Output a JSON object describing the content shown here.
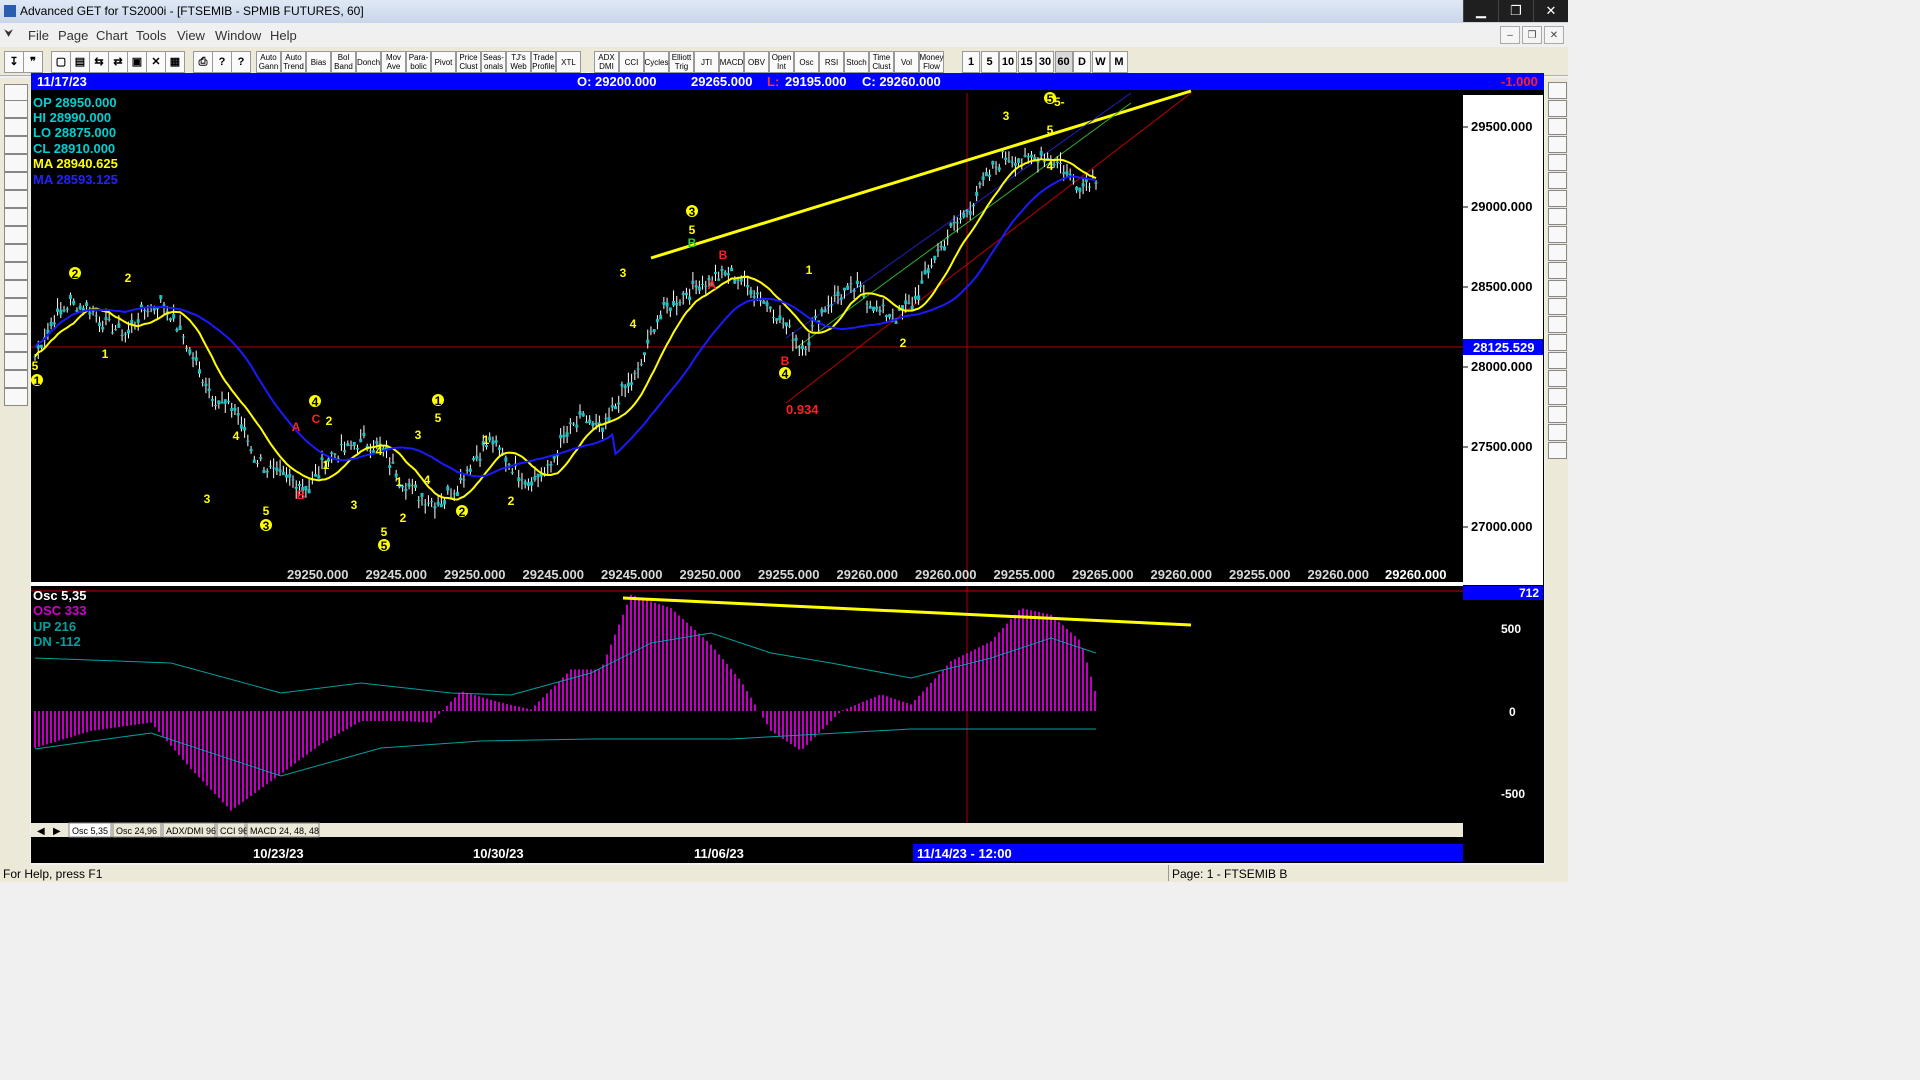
{
  "window": {
    "title": "Advanced GET for TS2000i - [FTSEMIB - SPMIB FUTURES, 60]",
    "minimize": "▁",
    "maximize": "❐",
    "close": "✕"
  },
  "menu": [
    "File",
    "Page",
    "Chart",
    "Tools",
    "View",
    "Window",
    "Help"
  ],
  "toolbar": {
    "study_buttons": [
      "Auto Gann",
      "Auto Trend",
      "Bias",
      "Bol Band",
      "Donch",
      "Mov Ave",
      "Para- bolic",
      "Pivot",
      "Price Clust",
      "Seas- onals",
      "TJ's Web",
      "Trade Profile",
      "XTL",
      "ADX DMI",
      "CCI",
      "Cycles",
      "Elliott Trig",
      "JTI",
      "MACD",
      "OBV",
      "Open Int",
      "Osc",
      "RSI",
      "Stoch",
      "Time Clust",
      "Vol",
      "Money Flow"
    ],
    "intervals": [
      "1",
      "5",
      "10",
      "15",
      "30",
      "60",
      "D",
      "W",
      "M"
    ],
    "active_interval": "60"
  },
  "header": {
    "date": "11/17/23",
    "open": "O: 29200.000",
    "high": "29265.000",
    "low_label": "L:",
    "low": "29195.000",
    "close": "C: 29260.000",
    "change": "-1.000"
  },
  "data_window": {
    "op": "OP  28950.000",
    "hi": "HI   28990.000",
    "lo": "LO  28875.000",
    "cl": "CL  28910.000",
    "ma1": "MA  28940.625",
    "ma2": "MA  28593.125"
  },
  "price_axis": {
    "ticks": [
      "29500.000",
      "29000.000",
      "28500.000",
      "28000.000",
      "27500.000",
      "27000.000"
    ],
    "cursor_price": "28125.529"
  },
  "bottom_value_row": [
    "29250.000",
    "29245.000",
    "29250.000",
    "29245.000",
    "29245.000",
    "29250.000",
    "29255.000",
    "29260.000",
    "29260.000",
    "29255.000",
    "29265.000",
    "29260.000",
    "29255.000",
    "29260.000"
  ],
  "bottom_value_last": "29260.000",
  "annotations": {
    "ratio": "0.934",
    "wave5_end": "5-"
  },
  "oscillator": {
    "title": "Osc 5,35",
    "osc": "OSC 333",
    "up": "UP   216",
    "dn": "DN   -112",
    "axis_ticks": [
      "500",
      "0",
      "-500"
    ],
    "axis_top": "712"
  },
  "tabs": [
    "Osc 5,35",
    "Osc 24,96",
    "ADX/DMI 96",
    "CCI 96",
    "MACD 24, 48, 48"
  ],
  "time_axis": {
    "labels": [
      "10/23/23",
      "10/30/23",
      "11/06/23"
    ],
    "cursor_time": "11/14/23 - 12:00"
  },
  "status": {
    "help": "For Help, press F1",
    "page": "Page: 1 - FTSEMIB B"
  },
  "colors": {
    "background": "#000000",
    "header_bar": "#0000ff",
    "ma_fast": "#ffff00",
    "ma_slow": "#1a1aff",
    "osc": "#c000c0",
    "signal": "#00a0a0",
    "cursor": "#c00000"
  },
  "chart_data": {
    "type": "candlestick",
    "price_range": [
      26700,
      29800
    ],
    "bars_approx_close": [
      28100,
      28350,
      28450,
      28400,
      28300,
      28250,
      28400,
      28450,
      28250,
      28000,
      27800,
      27750,
      27450,
      27350,
      27300,
      27250,
      27450,
      27500,
      27550,
      27500,
      27300,
      27200,
      27150,
      27250,
      27450,
      27550,
      27400,
      27300,
      27350,
      27600,
      27700,
      27600,
      27850,
      28000,
      28350,
      28450,
      28550,
      28600,
      28650,
      28550,
      28450,
      28300,
      28150,
      28400,
      28500,
      28550,
      28400,
      28350,
      28450,
      28700,
      28900,
      29050,
      29250,
      29400,
      29350,
      29400,
      29350,
      29200,
      29260
    ]
  }
}
